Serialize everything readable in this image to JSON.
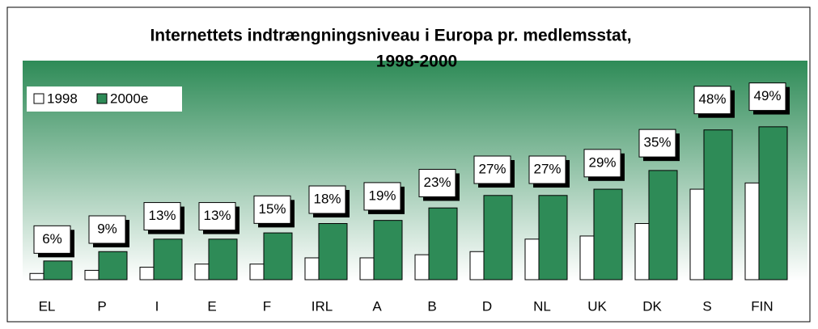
{
  "chart_data": {
    "type": "bar",
    "title": [
      "Internettets indtrængningsniveau i Europa pr. medlemsstat,",
      "1998-2000"
    ],
    "categories": [
      "EL",
      "P",
      "I",
      "E",
      "F",
      "IRL",
      "A",
      "B",
      "D",
      "NL",
      "UK",
      "DK",
      "S",
      "FIN"
    ],
    "series": [
      {
        "name": "1998",
        "color": "#ffffff",
        "values": [
          2,
          3,
          4,
          5,
          5,
          7,
          7,
          8,
          9,
          13,
          14,
          18,
          29,
          31
        ]
      },
      {
        "name": "2000e",
        "color": "#2e8b57",
        "values": [
          6,
          9,
          13,
          13,
          15,
          18,
          19,
          23,
          27,
          27,
          29,
          35,
          48,
          49
        ],
        "value_labels": [
          "6%",
          "9%",
          "13%",
          "13%",
          "15%",
          "18%",
          "19%",
          "23%",
          "27%",
          "27%",
          "29%",
          "35%",
          "48%",
          "49%"
        ]
      }
    ],
    "legend": "top-left"
  }
}
